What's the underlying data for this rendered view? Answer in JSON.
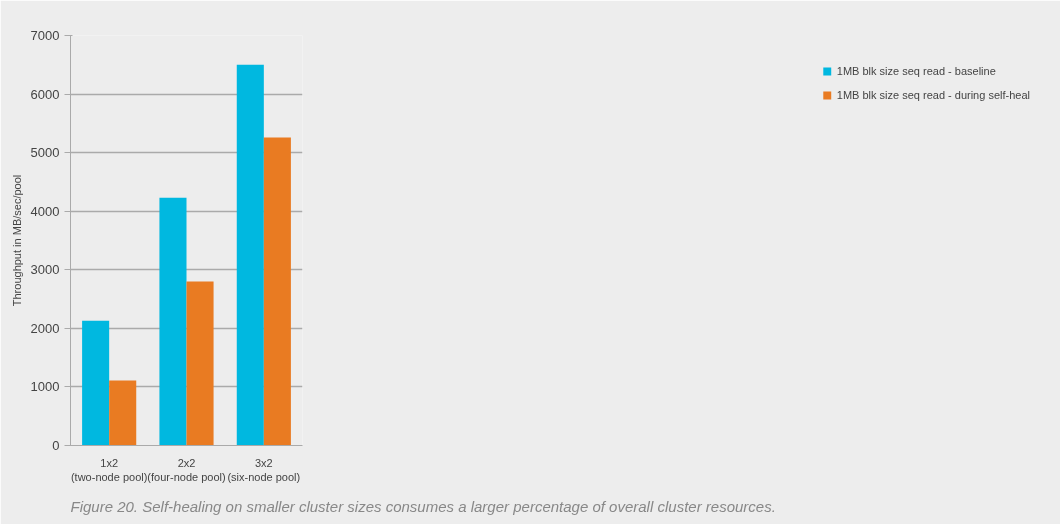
{
  "chart_data": {
    "type": "bar",
    "ylabel": "Throughput in MB/sec/pool",
    "categories": [
      "1x2\n(two-node pool)",
      "2x2\n(four-node pool)",
      "3x2\n(six-node pool)"
    ],
    "series": [
      {
        "name": "1MB blk size seq read - baseline",
        "color": "#00b8e0",
        "values": [
          2130,
          4230,
          6500
        ]
      },
      {
        "name": "1MB blk size seq read - during self-heal",
        "color": "#e97b22",
        "values": [
          1110,
          2800,
          5260
        ]
      }
    ],
    "ylim": [
      0,
      7000
    ],
    "yticks": [
      0,
      1000,
      2000,
      3000,
      4000,
      5000,
      6000,
      7000
    ],
    "grid": "y",
    "legend": "right",
    "annotations": [
      "Figure 20. Self-healing on smaller cluster sizes consumes a larger percentage of overall cluster resources."
    ]
  }
}
